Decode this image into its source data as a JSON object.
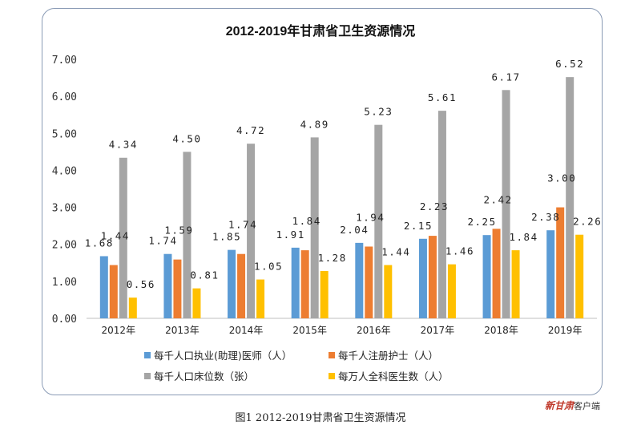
{
  "chart_data": {
    "type": "bar",
    "title": "2012-2019年甘肃省卫生资源情况",
    "categories": [
      "2012年",
      "2013年",
      "2014年",
      "2015年",
      "2016年",
      "2017年",
      "2018年",
      "2019年"
    ],
    "series": [
      {
        "name": "每千人口执业(助理)医师（人）",
        "color": "#5b9bd5",
        "values": [
          1.68,
          1.74,
          1.85,
          1.91,
          2.04,
          2.15,
          2.25,
          2.38
        ],
        "labels": [
          "1.68",
          "1.74",
          "1.85",
          "1.91",
          "2.04",
          "2.15",
          "2.25",
          "2.38"
        ]
      },
      {
        "name": "每千人注册护士（人）",
        "color": "#ed7d31",
        "values": [
          1.44,
          1.59,
          1.74,
          1.84,
          1.94,
          2.23,
          2.42,
          3.0
        ],
        "labels": [
          "1.44",
          "1.59",
          "1.74",
          "1.84",
          "1.94",
          "2.23",
          "2.42",
          "3.00"
        ]
      },
      {
        "name": "每千人口床位数（张）",
        "color": "#a5a5a5",
        "values": [
          4.34,
          4.5,
          4.72,
          4.89,
          5.23,
          5.61,
          6.17,
          6.52
        ],
        "labels": [
          "4.34",
          "4.50",
          "4.72",
          "4.89",
          "5.23",
          "5.61",
          "6.17",
          "6.52"
        ]
      },
      {
        "name": "每万人全科医生数（人）",
        "color": "#ffc000",
        "values": [
          0.56,
          0.81,
          1.05,
          1.28,
          1.44,
          1.46,
          1.84,
          2.26
        ],
        "labels": [
          "0.56",
          "0.81",
          "1.05",
          "1.28",
          "1.44",
          "1.46",
          "1.84",
          "2.26"
        ]
      }
    ],
    "ylim": [
      0,
      7
    ],
    "yticks": [
      "0.00",
      "1.00",
      "2.00",
      "3.00",
      "4.00",
      "5.00",
      "6.00",
      "7.00"
    ],
    "xlabel": "",
    "ylabel": "",
    "grid": false,
    "legend_position": "bottom"
  },
  "caption": "图1 2012-2019甘肃省卫生资源情况",
  "watermark": {
    "brand": "新甘肃",
    "suffix": "客户端"
  }
}
